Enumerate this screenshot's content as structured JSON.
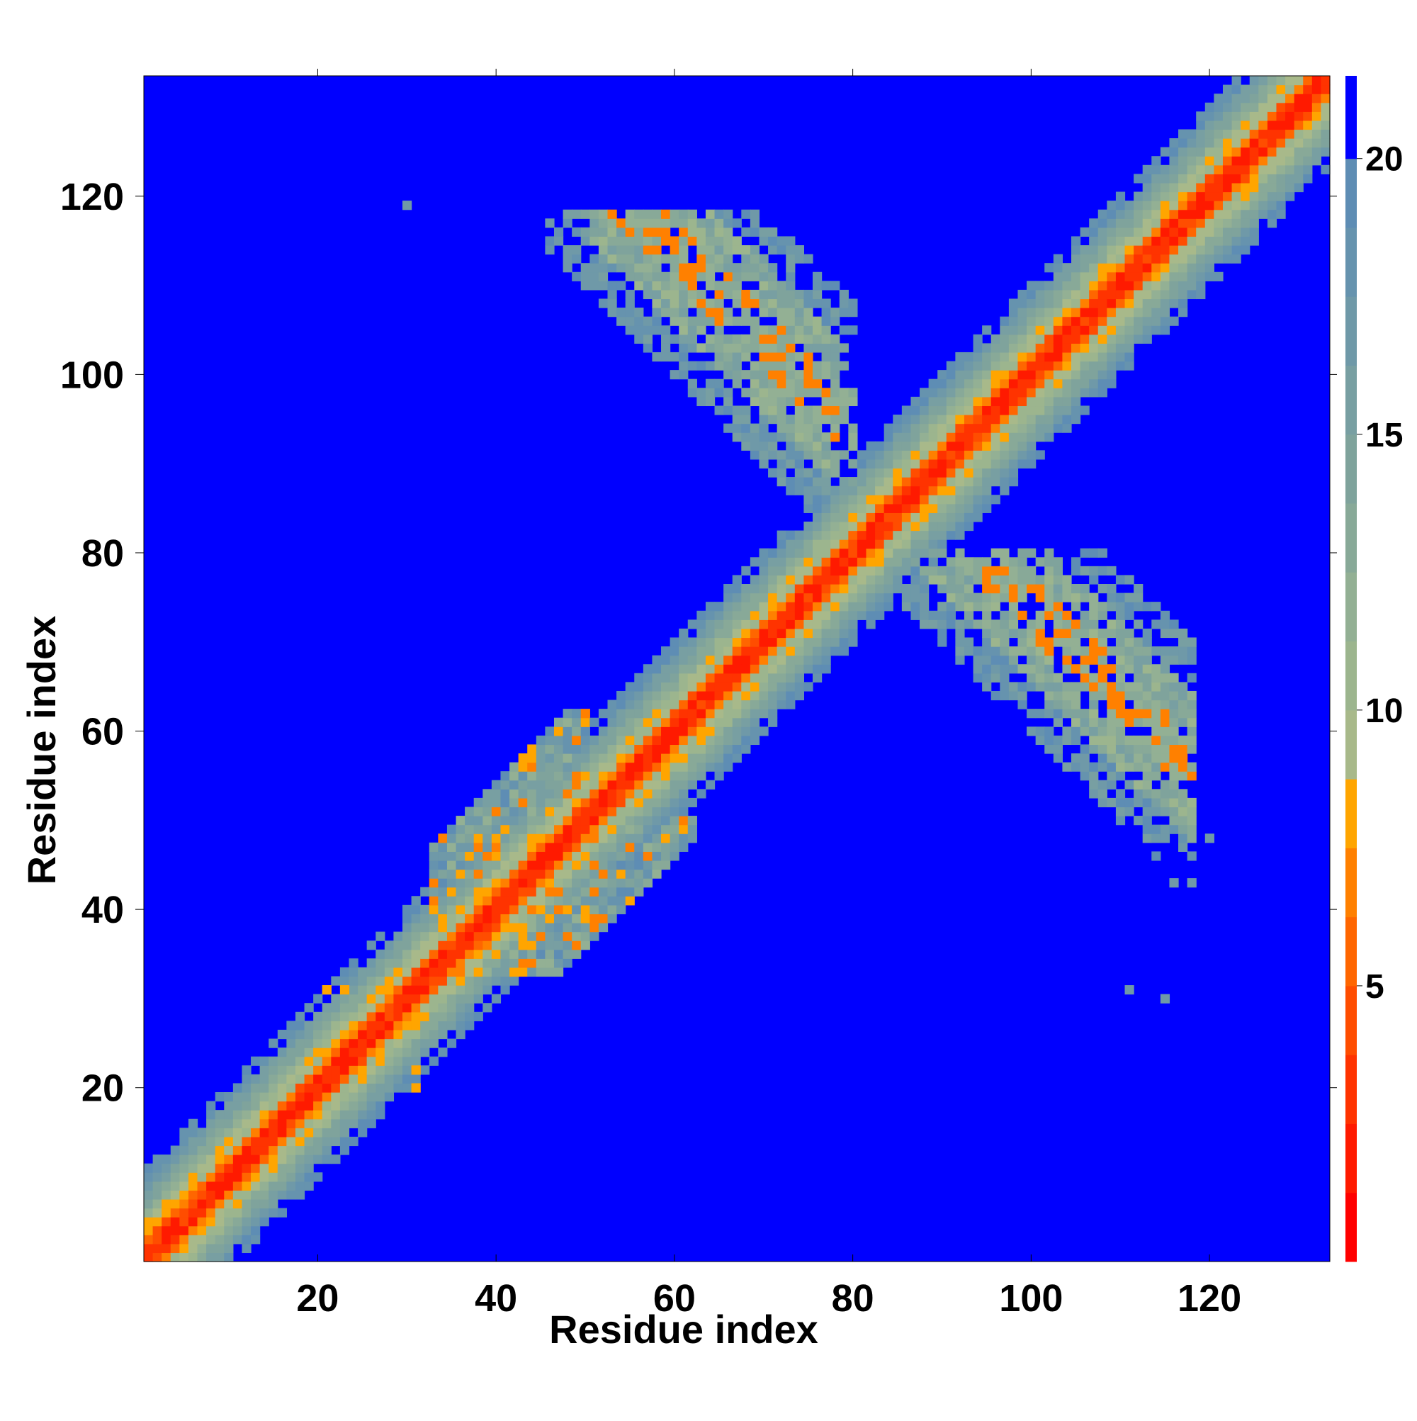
{
  "chart_data": {
    "type": "heatmap",
    "title": "",
    "xlabel": "Residue index",
    "ylabel": "Residue index",
    "xlim": [
      1,
      133
    ],
    "ylim": [
      1,
      133
    ],
    "x_ticks": [
      20,
      40,
      60,
      80,
      100,
      120
    ],
    "y_ticks": [
      20,
      40,
      60,
      80,
      100,
      120
    ],
    "colorbar": {
      "range": [
        0,
        21.5
      ],
      "ticks": [
        5,
        10,
        15,
        20
      ],
      "levels": [
        {
          "from": 0.0,
          "to": 1.25,
          "color": "#ff0000"
        },
        {
          "from": 1.25,
          "to": 2.5,
          "color": "#ff1a00"
        },
        {
          "from": 2.5,
          "to": 3.75,
          "color": "#ff3300"
        },
        {
          "from": 3.75,
          "to": 5.0,
          "color": "#ff4d00"
        },
        {
          "from": 5.0,
          "to": 6.25,
          "color": "#ff6600"
        },
        {
          "from": 6.25,
          "to": 7.5,
          "color": "#ff8000"
        },
        {
          "from": 7.5,
          "to": 8.75,
          "color": "#ffa500"
        },
        {
          "from": 8.75,
          "to": 10.0,
          "color": "#a8b98a"
        },
        {
          "from": 10.0,
          "to": 11.25,
          "color": "#9cb58e"
        },
        {
          "from": 11.25,
          "to": 12.5,
          "color": "#93b094"
        },
        {
          "from": 12.5,
          "to": 13.75,
          "color": "#88a998"
        },
        {
          "from": 13.75,
          "to": 15.0,
          "color": "#7fa39c"
        },
        {
          "from": 15.0,
          "to": 16.25,
          "color": "#789fa2"
        },
        {
          "from": 16.25,
          "to": 17.5,
          "color": "#6f99a8"
        },
        {
          "from": 17.5,
          "to": 18.75,
          "color": "#6693ae"
        },
        {
          "from": 18.75,
          "to": 20.0,
          "color": "#5e8db4"
        },
        {
          "from": 20.0,
          "to": 21.5,
          "color": "#0000ff"
        }
      ]
    },
    "background_value": 21,
    "features": [
      {
        "kind": "diagonal",
        "from": 1,
        "to": 133
      },
      {
        "kind": "antiparallel_contact_band",
        "x_range": [
          46,
          80
        ],
        "y_range": [
          80,
          118
        ]
      },
      {
        "kind": "antiparallel_contact_band",
        "x_range": [
          80,
          119
        ],
        "y_range": [
          46,
          80
        ]
      },
      {
        "kind": "contact_cluster",
        "x_range": [
          33,
          50
        ],
        "y_range": [
          36,
          62
        ]
      },
      {
        "kind": "isolated_contacts",
        "points": [
          [
            21,
            31
          ],
          [
            23,
            31
          ],
          [
            31,
            22
          ],
          [
            31,
            20
          ],
          [
            111,
            31
          ],
          [
            115,
            30
          ],
          [
            120,
            48
          ],
          [
            116,
            43
          ],
          [
            118,
            43
          ],
          [
            30,
            119
          ]
        ]
      }
    ]
  }
}
